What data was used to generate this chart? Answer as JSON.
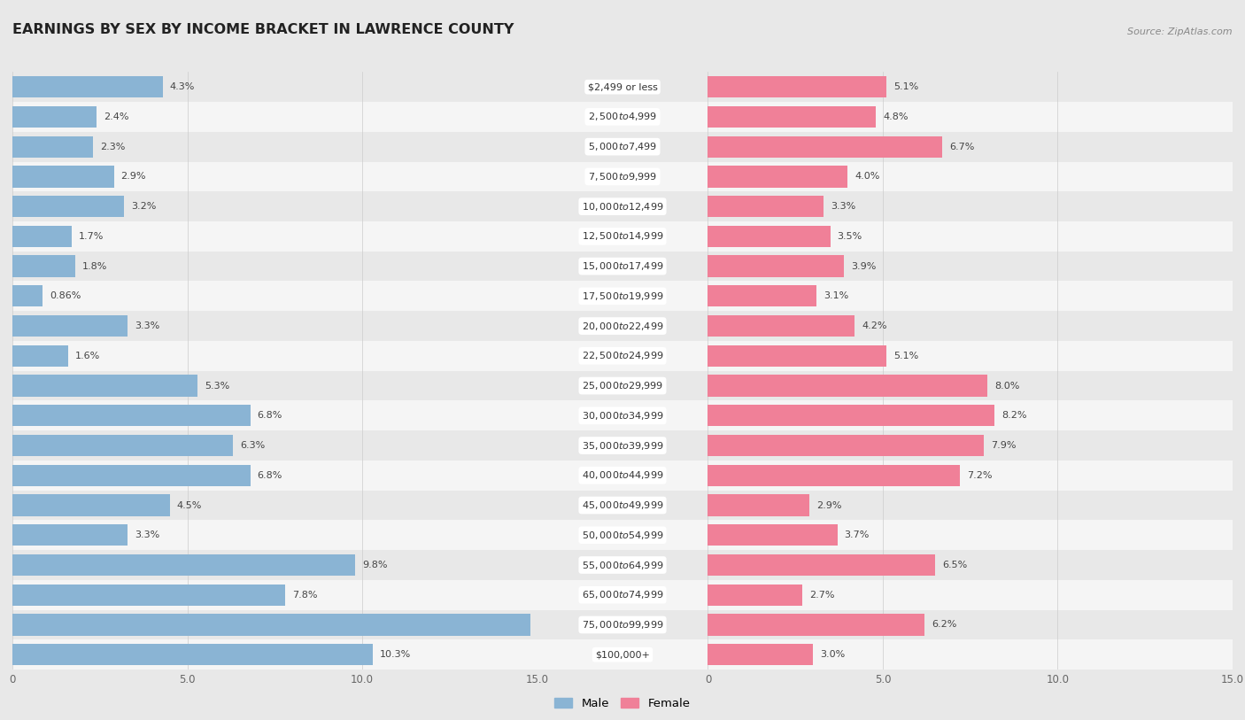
{
  "title": "EARNINGS BY SEX BY INCOME BRACKET IN LAWRENCE COUNTY",
  "source": "Source: ZipAtlas.com",
  "categories": [
    "$2,499 or less",
    "$2,500 to $4,999",
    "$5,000 to $7,499",
    "$7,500 to $9,999",
    "$10,000 to $12,499",
    "$12,500 to $14,999",
    "$15,000 to $17,499",
    "$17,500 to $19,999",
    "$20,000 to $22,499",
    "$22,500 to $24,999",
    "$25,000 to $29,999",
    "$30,000 to $34,999",
    "$35,000 to $39,999",
    "$40,000 to $44,999",
    "$45,000 to $49,999",
    "$50,000 to $54,999",
    "$55,000 to $64,999",
    "$65,000 to $74,999",
    "$75,000 to $99,999",
    "$100,000+"
  ],
  "male_values": [
    4.3,
    2.4,
    2.3,
    2.9,
    3.2,
    1.7,
    1.8,
    0.86,
    3.3,
    1.6,
    5.3,
    6.8,
    6.3,
    6.8,
    4.5,
    3.3,
    9.8,
    7.8,
    14.8,
    10.3
  ],
  "female_values": [
    5.1,
    4.8,
    6.7,
    4.0,
    3.3,
    3.5,
    3.9,
    3.1,
    4.2,
    5.1,
    8.0,
    8.2,
    7.9,
    7.2,
    2.9,
    3.7,
    6.5,
    2.7,
    6.2,
    3.0
  ],
  "male_color": "#8ab4d4",
  "female_color": "#f08098",
  "background_color": "#e8e8e8",
  "row_color_odd": "#f5f5f5",
  "row_color_even": "#e8e8e8",
  "bar_label_bg": "#ffffff",
  "xlim": 15.0,
  "legend_male": "Male",
  "legend_female": "Female",
  "label_fontsize": 8.0,
  "value_fontsize": 8.0,
  "title_fontsize": 11.5
}
